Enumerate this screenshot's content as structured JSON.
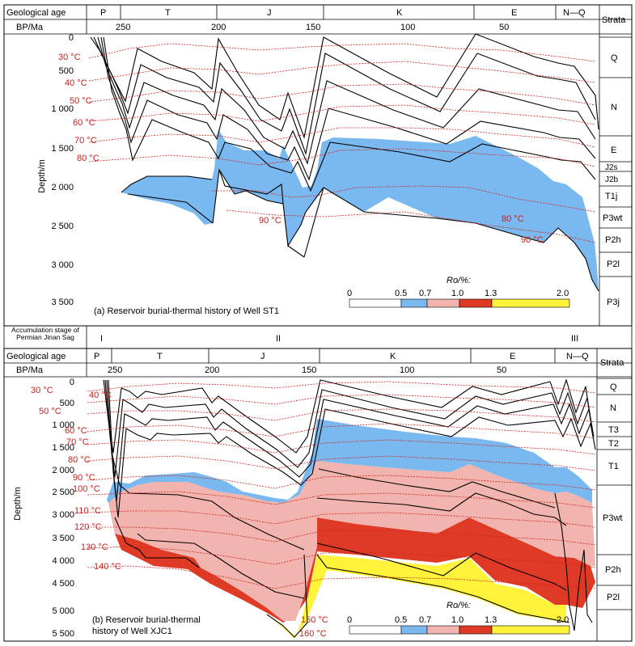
{
  "panel_a": {
    "header_label_geo": "Geological age",
    "header_label_bp": "BP/Ma",
    "header_label_strata": "Strata",
    "periods": [
      "P",
      "T",
      "J",
      "K",
      "E",
      "N—Q"
    ],
    "ticks": [
      "250",
      "200",
      "150",
      "100",
      "50"
    ],
    "depths": [
      "0",
      "500",
      "1 000",
      "1 500",
      "2 000",
      "2 500",
      "3 000",
      "3 500"
    ],
    "ylabel": "Depth/m",
    "temps_left": [
      "30 °C",
      "40 °C",
      "50 °C",
      "60 °C",
      "70 °C",
      "80 °C"
    ],
    "temps_extra": [
      "90 °C",
      "80 °C",
      "90 °C"
    ],
    "strata": [
      "Q",
      "N",
      "E",
      "J2s",
      "J2b",
      "T1j",
      "P3wt",
      "P2h",
      "P2l",
      "P3j"
    ],
    "caption": "(a) Reservoir burial-thermal history of Well ST1",
    "legend_title": "Ro/%:",
    "legend_ticks": [
      "0",
      "0.5",
      "0.7",
      "1.0",
      "1.3",
      "2.0"
    ]
  },
  "stage_row": {
    "label": "Accumulation stage of Permian Jinan Sag",
    "stages": [
      "I",
      "II",
      "III"
    ]
  },
  "panel_b": {
    "header_label_geo": "Geological age",
    "header_label_bp": "BP/Ma",
    "header_label_strata": "Strata",
    "periods": [
      "P",
      "T",
      "J",
      "K",
      "E",
      "N—Q"
    ],
    "ticks": [
      "250",
      "200",
      "150",
      "100",
      "50"
    ],
    "depths": [
      "0",
      "500",
      "1 000",
      "1 500",
      "2 000",
      "2 500",
      "3 000",
      "3 500",
      "4 000",
      "4 500",
      "5 000",
      "5 500"
    ],
    "ylabel": "Depth/m",
    "temps_left": [
      "30 °C",
      "40 °C",
      "50 °C",
      "60 °C",
      "70 °C",
      "80 °C",
      "90 °C",
      "100 °C",
      "110 °C",
      "120 °C",
      "130 °C",
      "140 °C"
    ],
    "temps_extra": [
      "150 °C",
      "160 °C"
    ],
    "strata": [
      "Q",
      "N",
      "T3",
      "T2",
      "T1",
      "P3wt",
      "P2h",
      "P2l"
    ],
    "caption_line1": "(b) Reservoir burial-thermal",
    "caption_line2": "history of Well XJC1",
    "legend_title": "Ro/%:",
    "legend_ticks": [
      "0",
      "0.5",
      "0.7",
      "1.0",
      "1.3",
      "2.0"
    ]
  },
  "colors": {
    "blue": "#7ab8f0",
    "pink": "#f2b4ae",
    "red": "#de3a26",
    "yellow": "#fff23a",
    "isotherm": "#d0241c",
    "temp_text": "#c8201a"
  }
}
